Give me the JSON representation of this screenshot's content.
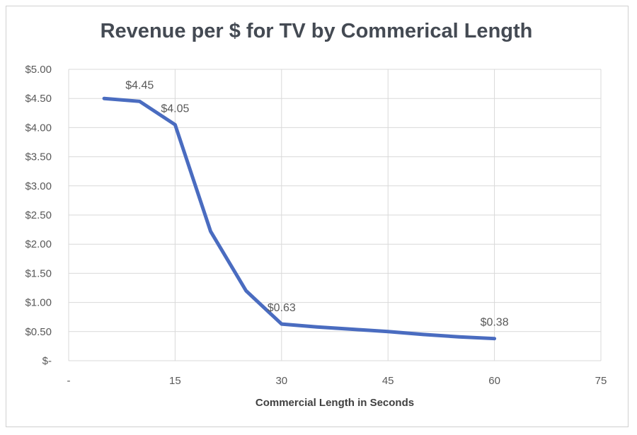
{
  "chart_data": {
    "type": "line",
    "title": "Revenue per $ for TV by Commerical Length",
    "xlabel": "Commercial  Length in Seconds",
    "ylabel": "",
    "xlim": [
      0,
      75
    ],
    "ylim": [
      0,
      5
    ],
    "x_ticks": [
      0,
      15,
      30,
      45,
      60,
      75
    ],
    "x_tick_labels": [
      "-",
      "15",
      "30",
      "45",
      "60",
      "75"
    ],
    "y_ticks": [
      0,
      0.5,
      1,
      1.5,
      2,
      2.5,
      3,
      3.5,
      4,
      4.5,
      5
    ],
    "y_tick_labels": [
      "$-",
      "$0.50",
      "$1.00",
      "$1.50",
      "$2.00",
      "$2.50",
      "$3.00",
      "$3.50",
      "$4.00",
      "$4.50",
      "$5.00"
    ],
    "grid": true,
    "line_color": "#4a6cc0",
    "series": [
      {
        "x": [
          5,
          10,
          15,
          20,
          25,
          30,
          35,
          40,
          45,
          50,
          55,
          60
        ],
        "y": [
          4.5,
          4.45,
          4.05,
          2.22,
          1.2,
          0.63,
          0.58,
          0.54,
          0.5,
          0.45,
          0.41,
          0.38
        ]
      }
    ],
    "data_labels": [
      {
        "x": 10,
        "y": 4.45,
        "text": "$4.45"
      },
      {
        "x": 15,
        "y": 4.05,
        "text": "$4.05"
      },
      {
        "x": 30,
        "y": 0.63,
        "text": "$0.63"
      },
      {
        "x": 60,
        "y": 0.38,
        "text": "$0.38"
      }
    ]
  }
}
